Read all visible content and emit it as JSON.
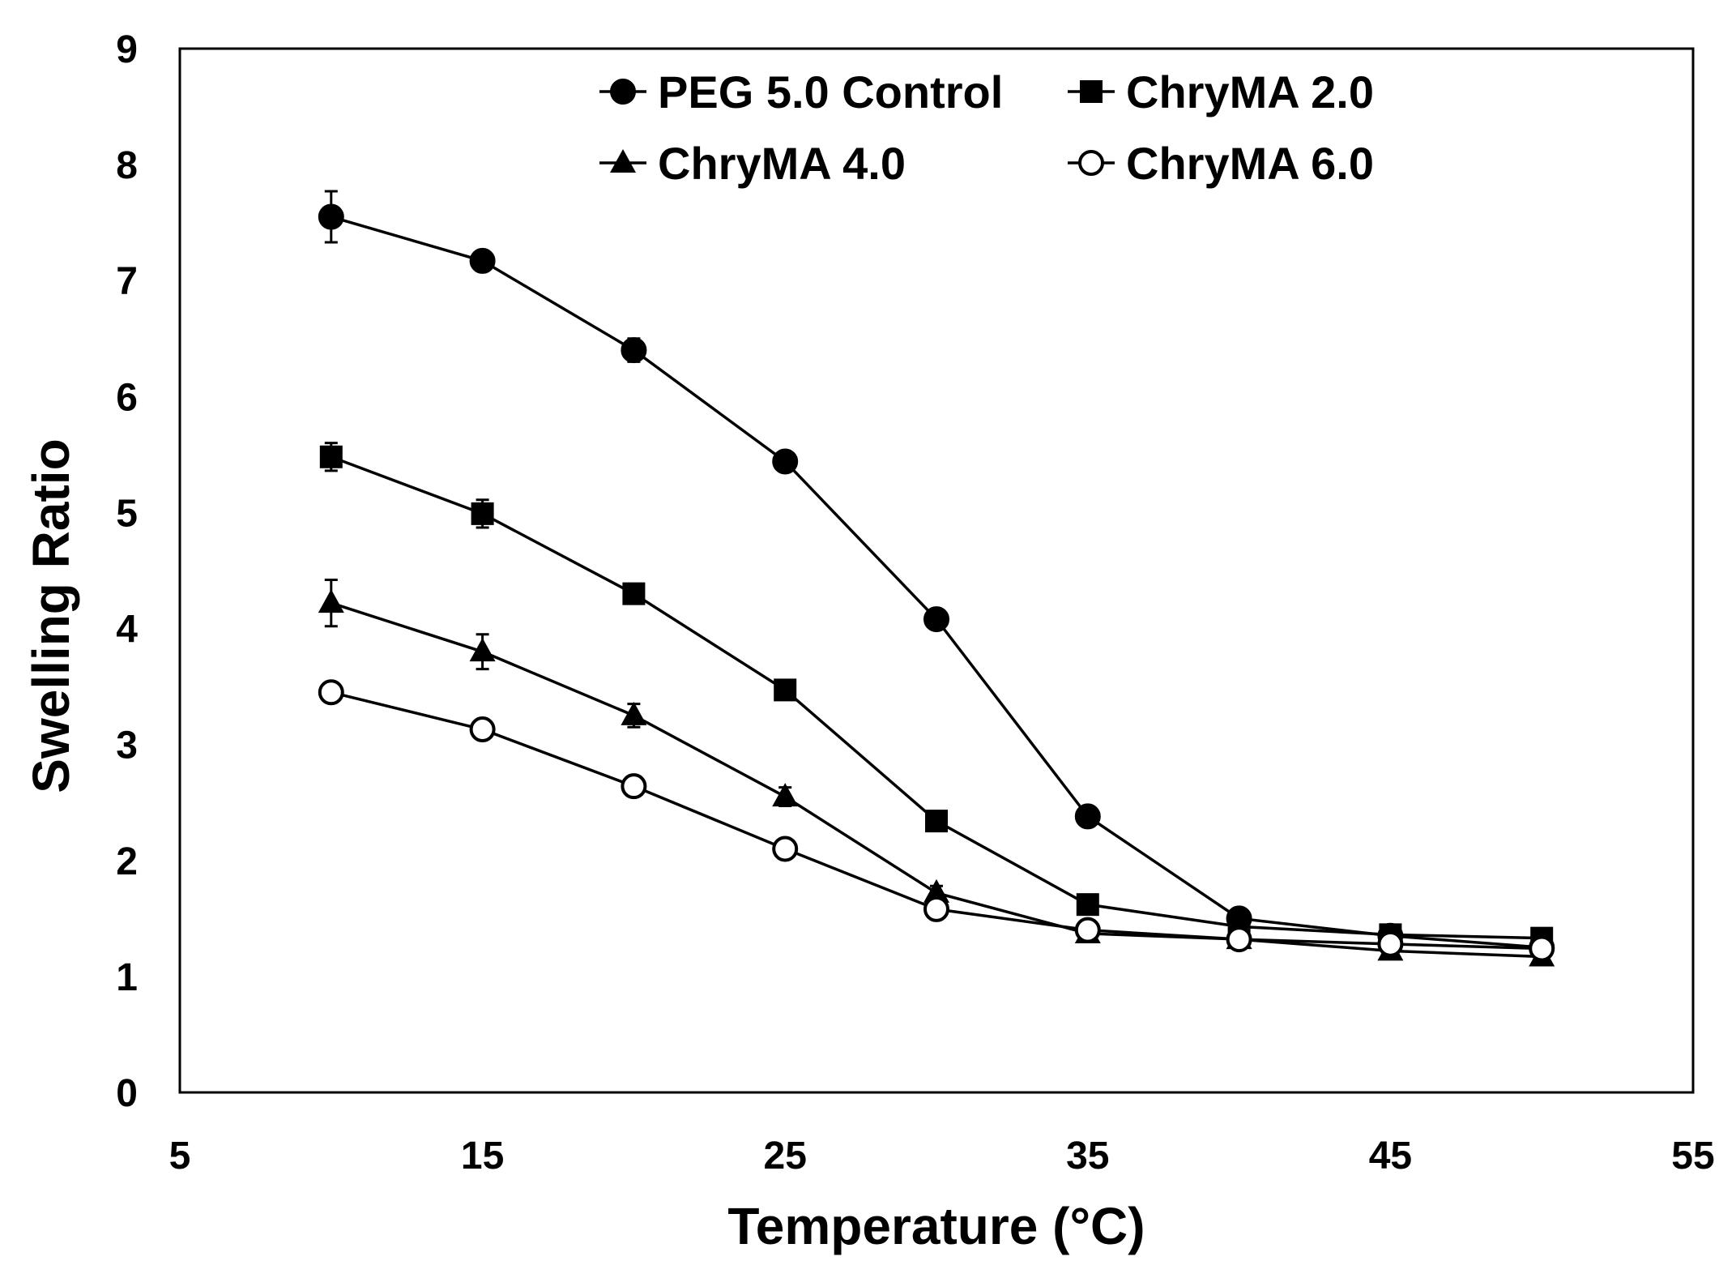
{
  "chart_data": {
    "type": "line",
    "title": "",
    "xlabel": "Temperature (°C)",
    "ylabel": "Swelling Ratio",
    "xlim": [
      5,
      55
    ],
    "ylim": [
      0,
      9
    ],
    "xticks": [
      5,
      15,
      25,
      35,
      45,
      55
    ],
    "yticks": [
      0,
      1,
      2,
      3,
      4,
      5,
      6,
      7,
      8,
      9
    ],
    "grid": false,
    "legend_position": "top-center",
    "x": [
      10,
      15,
      20,
      25,
      30,
      35,
      40,
      45,
      50
    ],
    "series": [
      {
        "name": "PEG 5.0 Control",
        "marker": "filled-circle",
        "values": [
          7.55,
          7.17,
          6.4,
          5.44,
          4.08,
          2.38,
          1.5,
          1.35,
          1.25
        ],
        "errors": [
          0.22,
          0.05,
          0.1,
          0.05,
          0.05,
          0.04,
          0.03,
          0.03,
          0.03
        ]
      },
      {
        "name": "ChryMA 2.0",
        "marker": "filled-square",
        "values": [
          5.48,
          4.99,
          4.3,
          3.47,
          2.34,
          1.62,
          1.43,
          1.36,
          1.33
        ],
        "errors": [
          0.12,
          0.12,
          0.05,
          0.05,
          0.04,
          0.04,
          0.03,
          0.03,
          0.03
        ]
      },
      {
        "name": "ChryMA 4.0",
        "marker": "filled-triangle",
        "values": [
          4.22,
          3.8,
          3.25,
          2.55,
          1.72,
          1.37,
          1.32,
          1.22,
          1.17
        ],
        "errors": [
          0.2,
          0.15,
          0.1,
          0.08,
          0.06,
          0.04,
          0.03,
          0.03,
          0.03
        ]
      },
      {
        "name": "ChryMA 6.0",
        "marker": "open-circle",
        "values": [
          3.45,
          3.13,
          2.64,
          2.1,
          1.58,
          1.4,
          1.32,
          1.28,
          1.24
        ],
        "errors": [
          0.05,
          0.04,
          0.04,
          0.03,
          0.03,
          0.03,
          0.03,
          0.03,
          0.03
        ]
      }
    ]
  }
}
